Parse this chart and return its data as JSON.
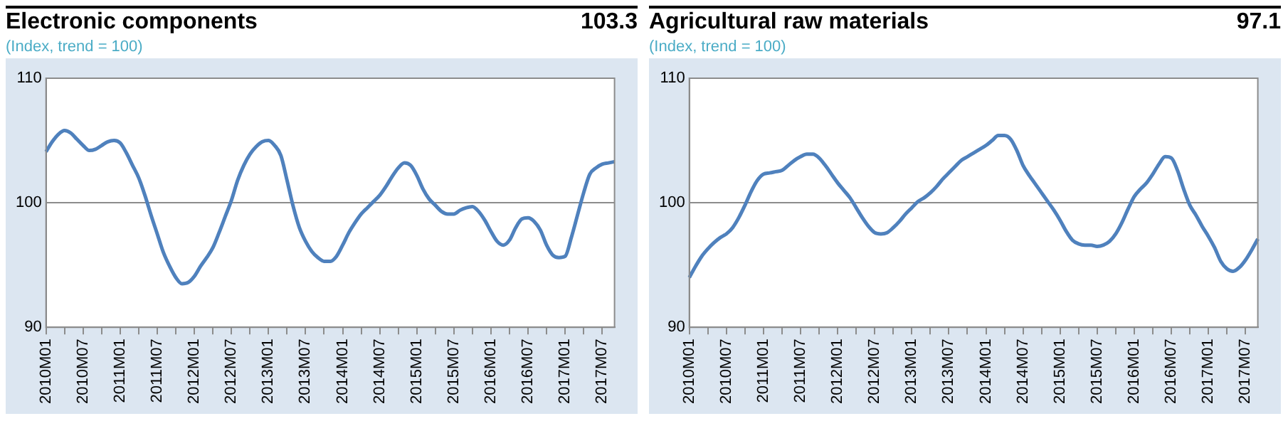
{
  "chart_data": [
    {
      "type": "line",
      "title": "Electronic components",
      "subtitle": "(Index, trend = 100)",
      "annotations": [
        "103.3"
      ],
      "categories": [
        "2010M01",
        null,
        null,
        null,
        null,
        null,
        "2010M07",
        null,
        null,
        null,
        null,
        null,
        "2011M01",
        null,
        null,
        null,
        null,
        null,
        "2011M07",
        null,
        null,
        null,
        null,
        null,
        "2012M01",
        null,
        null,
        null,
        null,
        null,
        "2012M07",
        null,
        null,
        null,
        null,
        null,
        "2013M01",
        null,
        null,
        null,
        null,
        null,
        "2013M07",
        null,
        null,
        null,
        null,
        null,
        "2014M01",
        null,
        null,
        null,
        null,
        null,
        "2014M07",
        null,
        null,
        null,
        null,
        null,
        "2015M01",
        null,
        null,
        null,
        null,
        null,
        "2015M07",
        null,
        null,
        null,
        null,
        null,
        "2016M01",
        null,
        null,
        null,
        null,
        null,
        "2016M07",
        null,
        null,
        null,
        null,
        null,
        "2017M01",
        null,
        null,
        null,
        null,
        null,
        "2017M07",
        null,
        null
      ],
      "values": [
        104.1,
        104.9,
        105.5,
        105.8,
        105.6,
        105.1,
        104.6,
        104.2,
        104.3,
        104.6,
        104.9,
        105.0,
        104.8,
        104.0,
        103.0,
        102.0,
        100.6,
        99.0,
        97.5,
        96.0,
        94.9,
        94.0,
        93.5,
        93.6,
        94.1,
        94.9,
        95.6,
        96.4,
        97.6,
        98.9,
        100.2,
        101.8,
        103.0,
        103.9,
        104.5,
        104.9,
        105.0,
        104.6,
        103.8,
        101.8,
        99.7,
        98.0,
        96.9,
        96.1,
        95.6,
        95.3,
        95.3,
        95.7,
        96.6,
        97.6,
        98.4,
        99.1,
        99.6,
        100.1,
        100.6,
        101.3,
        102.1,
        102.8,
        103.2,
        103.0,
        102.2,
        101.1,
        100.3,
        99.8,
        99.3,
        99.1,
        99.1,
        99.4,
        99.6,
        99.7,
        99.3,
        98.6,
        97.7,
        96.9,
        96.6,
        97.0,
        98.0,
        98.7,
        98.8,
        98.5,
        97.8,
        96.6,
        95.8,
        95.6,
        95.7,
        97.2,
        99.0,
        100.8,
        102.3,
        102.8,
        103.1,
        103.2,
        103.3
      ],
      "color": "#4f81bd",
      "ylim": [
        90,
        110
      ],
      "yticks": [
        90,
        100,
        110
      ],
      "grid": "y"
    },
    {
      "type": "line",
      "title": "Agricultural raw materials",
      "subtitle": "(Index, trend = 100)",
      "annotations": [
        "97.1"
      ],
      "categories": [
        "2010M01",
        null,
        null,
        null,
        null,
        null,
        "2010M07",
        null,
        null,
        null,
        null,
        null,
        "2011M01",
        null,
        null,
        null,
        null,
        null,
        "2011M07",
        null,
        null,
        null,
        null,
        null,
        "2012M01",
        null,
        null,
        null,
        null,
        null,
        "2012M07",
        null,
        null,
        null,
        null,
        null,
        "2013M01",
        null,
        null,
        null,
        null,
        null,
        "2013M07",
        null,
        null,
        null,
        null,
        null,
        "2014M01",
        null,
        null,
        null,
        null,
        null,
        "2014M07",
        null,
        null,
        null,
        null,
        null,
        "2015M01",
        null,
        null,
        null,
        null,
        null,
        "2015M07",
        null,
        null,
        null,
        null,
        null,
        "2016M01",
        null,
        null,
        null,
        null,
        null,
        "2016M07",
        null,
        null,
        null,
        null,
        null,
        "2017M01",
        null,
        null,
        null,
        null,
        null,
        "2017M07",
        null,
        null
      ],
      "values": [
        94.0,
        94.9,
        95.7,
        96.3,
        96.8,
        97.2,
        97.5,
        98.0,
        98.8,
        99.8,
        100.9,
        101.8,
        102.3,
        102.4,
        102.5,
        102.6,
        103.0,
        103.4,
        103.7,
        103.9,
        103.9,
        103.6,
        103.0,
        102.3,
        101.6,
        101.0,
        100.4,
        99.6,
        98.8,
        98.1,
        97.6,
        97.5,
        97.6,
        98.0,
        98.5,
        99.1,
        99.6,
        100.1,
        100.4,
        100.8,
        101.3,
        101.9,
        102.4,
        102.9,
        103.4,
        103.7,
        104.0,
        104.3,
        104.6,
        105.0,
        105.4,
        105.4,
        105.1,
        104.2,
        103.0,
        102.2,
        101.5,
        100.8,
        100.1,
        99.4,
        98.6,
        97.7,
        97.0,
        96.7,
        96.6,
        96.6,
        96.5,
        96.6,
        96.9,
        97.5,
        98.4,
        99.5,
        100.5,
        101.1,
        101.6,
        102.3,
        103.1,
        103.7,
        103.6,
        102.6,
        101.1,
        99.8,
        99.0,
        98.1,
        97.3,
        96.4,
        95.3,
        94.7,
        94.5,
        94.8,
        95.4,
        96.2,
        97.1
      ],
      "color": "#4f81bd",
      "ylim": [
        90,
        110
      ],
      "yticks": [
        90,
        100,
        110
      ],
      "grid": "y"
    }
  ]
}
